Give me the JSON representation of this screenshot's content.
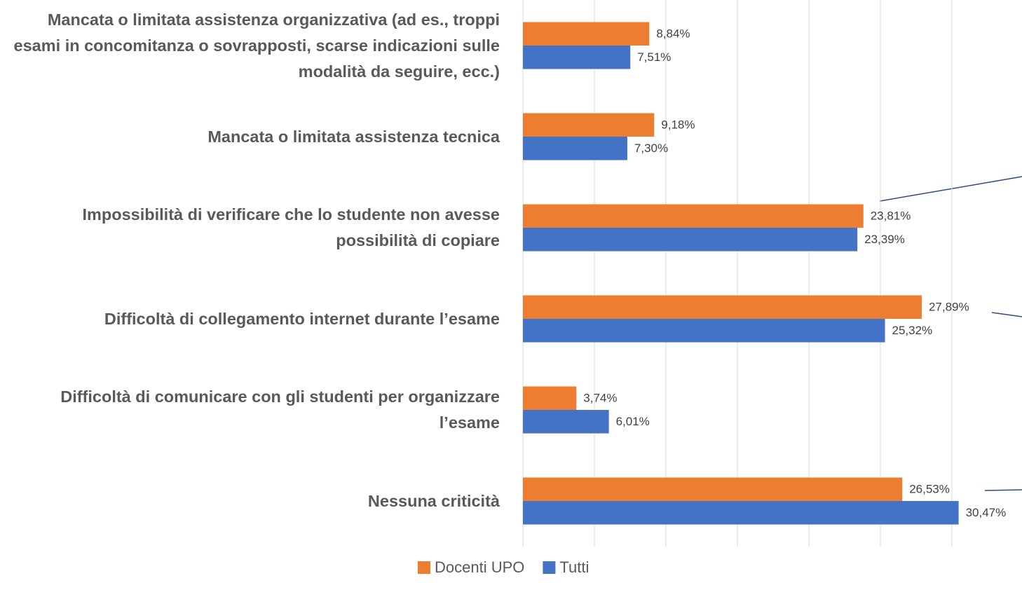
{
  "chart_data": {
    "type": "hbar",
    "categories": [
      "Mancata o limitata assistenza organizzativa (ad es., troppi esami in concomitanza o sovrapposti, scarse indicazioni sulle modalità da seguire, ecc.)",
      "Mancata o limitata assistenza tecnica",
      "Impossibilità di verificare che lo studente non avesse possibilità di copiare",
      "Difficoltà di collegamento internet durante l’esame",
      "Difficoltà di comunicare con gli studenti per organizzare l’esame",
      "Nessuna criticità"
    ],
    "series": [
      {
        "name": "Docenti UPO",
        "color": "#ed7d31",
        "values": [
          8.84,
          9.18,
          23.81,
          27.89,
          3.74,
          26.53
        ],
        "value_labels": [
          "8,84%",
          "9,18%",
          "23,81%",
          "27,89%",
          "3,74%",
          "26,53%"
        ]
      },
      {
        "name": "Tutti",
        "color": "#4472c4",
        "values": [
          7.51,
          7.3,
          23.39,
          25.32,
          6.01,
          30.47
        ],
        "value_labels": [
          "7,51%",
          "7,30%",
          "23,39%",
          "25,32%",
          "6,01%",
          "30,47%"
        ]
      }
    ],
    "xlim": [
      0,
      35
    ],
    "xticks": [
      0,
      5,
      10,
      15,
      20,
      25,
      30,
      35
    ],
    "grid": true,
    "legend": "bottom"
  }
}
